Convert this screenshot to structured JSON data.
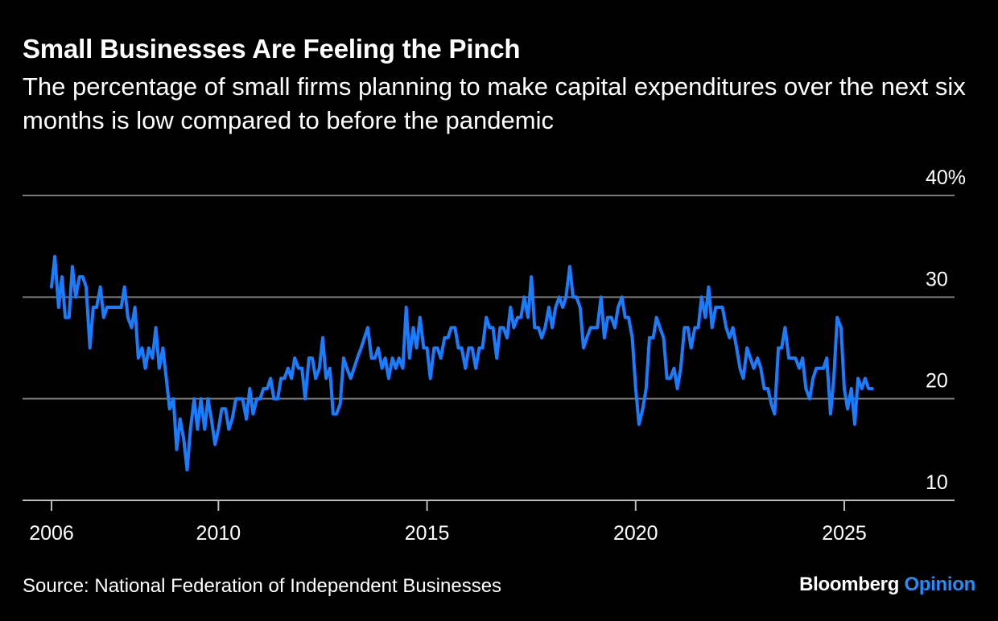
{
  "header": {
    "title": "Small Businesses Are Feeling the Pinch",
    "subtitle": "The percentage of small firms planning to make capital expenditures over the next six months is low compared to before the pandemic"
  },
  "footer": {
    "source": "Source: National Federation of Independent Businesses",
    "logo_primary": "Bloomberg",
    "logo_secondary": "Opinion"
  },
  "colors": {
    "background": "#000000",
    "line": "#1a7cff",
    "gridline": "#7a7a7a",
    "axis": "#bdbdbd",
    "text": "#ffffff",
    "logo_accent": "#1f8fff"
  },
  "chart_data": {
    "type": "line",
    "title": "Small Businesses Are Feeling the Pinch",
    "subtitle": "The percentage of small firms planning to make capital expenditures over the next six months is low compared to before the pandemic",
    "xlabel": "",
    "ylabel": "",
    "ylim": [
      10,
      40
    ],
    "xlim": [
      2005.5,
      2028.0
    ],
    "y_ticks": [
      {
        "value": 10,
        "label": "10"
      },
      {
        "value": 20,
        "label": "20"
      },
      {
        "value": 30,
        "label": "30"
      },
      {
        "value": 40,
        "label": "40%"
      }
    ],
    "x_ticks": [
      {
        "value": 2006,
        "label": "2006"
      },
      {
        "value": 2010,
        "label": "2010"
      },
      {
        "value": 2015,
        "label": "2015"
      },
      {
        "value": 2020,
        "label": "2020"
      },
      {
        "value": 2025,
        "label": "2025"
      }
    ],
    "grid": true,
    "legend": "none",
    "series": [
      {
        "points": [
          [
            2006.0,
            31
          ],
          [
            2006.08,
            34
          ],
          [
            2006.17,
            29
          ],
          [
            2006.25,
            32
          ],
          [
            2006.33,
            28
          ],
          [
            2006.42,
            28
          ],
          [
            2006.5,
            33
          ],
          [
            2006.58,
            30
          ],
          [
            2006.67,
            32
          ],
          [
            2006.75,
            32
          ],
          [
            2006.83,
            31
          ],
          [
            2006.92,
            25
          ],
          [
            2007.0,
            29
          ],
          [
            2007.08,
            29
          ],
          [
            2007.17,
            31
          ],
          [
            2007.25,
            28
          ],
          [
            2007.33,
            29
          ],
          [
            2007.42,
            29
          ],
          [
            2007.5,
            29
          ],
          [
            2007.58,
            29
          ],
          [
            2007.67,
            29
          ],
          [
            2007.75,
            31
          ],
          [
            2007.83,
            28
          ],
          [
            2007.92,
            27
          ],
          [
            2008.0,
            29
          ],
          [
            2008.08,
            24
          ],
          [
            2008.17,
            25
          ],
          [
            2008.25,
            23
          ],
          [
            2008.33,
            25
          ],
          [
            2008.42,
            24
          ],
          [
            2008.5,
            27
          ],
          [
            2008.58,
            23
          ],
          [
            2008.67,
            25
          ],
          [
            2008.75,
            22
          ],
          [
            2008.83,
            19
          ],
          [
            2008.92,
            20
          ],
          [
            2009.0,
            15
          ],
          [
            2009.08,
            18
          ],
          [
            2009.17,
            16
          ],
          [
            2009.25,
            13
          ],
          [
            2009.33,
            17
          ],
          [
            2009.42,
            20
          ],
          [
            2009.5,
            17
          ],
          [
            2009.58,
            20
          ],
          [
            2009.67,
            17
          ],
          [
            2009.75,
            20
          ],
          [
            2009.83,
            18
          ],
          [
            2009.92,
            15.5
          ],
          [
            2010.0,
            17
          ],
          [
            2010.08,
            19
          ],
          [
            2010.17,
            19
          ],
          [
            2010.25,
            17
          ],
          [
            2010.33,
            18
          ],
          [
            2010.42,
            20
          ],
          [
            2010.5,
            20
          ],
          [
            2010.58,
            20
          ],
          [
            2010.67,
            18
          ],
          [
            2010.75,
            21
          ],
          [
            2010.83,
            18.5
          ],
          [
            2010.92,
            20
          ],
          [
            2011.0,
            20
          ],
          [
            2011.08,
            21
          ],
          [
            2011.17,
            21
          ],
          [
            2011.25,
            22
          ],
          [
            2011.33,
            20
          ],
          [
            2011.42,
            20
          ],
          [
            2011.5,
            22
          ],
          [
            2011.58,
            22
          ],
          [
            2011.67,
            23
          ],
          [
            2011.75,
            22
          ],
          [
            2011.83,
            24
          ],
          [
            2011.92,
            23
          ],
          [
            2012.0,
            23
          ],
          [
            2012.08,
            20
          ],
          [
            2012.17,
            24
          ],
          [
            2012.25,
            24
          ],
          [
            2012.33,
            22
          ],
          [
            2012.42,
            23
          ],
          [
            2012.5,
            26
          ],
          [
            2012.58,
            22
          ],
          [
            2012.67,
            23
          ],
          [
            2012.75,
            18.5
          ],
          [
            2012.83,
            18.5
          ],
          [
            2012.92,
            19.5
          ],
          [
            2013.0,
            24
          ],
          [
            2013.08,
            23
          ],
          [
            2013.17,
            22
          ],
          [
            2013.25,
            23
          ],
          [
            2013.33,
            24
          ],
          [
            2013.42,
            25
          ],
          [
            2013.5,
            26
          ],
          [
            2013.58,
            27
          ],
          [
            2013.67,
            24
          ],
          [
            2013.75,
            24
          ],
          [
            2013.83,
            25
          ],
          [
            2013.92,
            23
          ],
          [
            2014.0,
            24
          ],
          [
            2014.08,
            22
          ],
          [
            2014.17,
            24
          ],
          [
            2014.25,
            23
          ],
          [
            2014.33,
            24
          ],
          [
            2014.42,
            23
          ],
          [
            2014.5,
            29
          ],
          [
            2014.58,
            24
          ],
          [
            2014.67,
            27
          ],
          [
            2014.75,
            25
          ],
          [
            2014.83,
            28
          ],
          [
            2014.92,
            25
          ],
          [
            2015.0,
            25
          ],
          [
            2015.08,
            22
          ],
          [
            2015.17,
            25
          ],
          [
            2015.25,
            25
          ],
          [
            2015.33,
            24
          ],
          [
            2015.42,
            26
          ],
          [
            2015.5,
            26
          ],
          [
            2015.58,
            27
          ],
          [
            2015.67,
            27
          ],
          [
            2015.75,
            25
          ],
          [
            2015.83,
            25
          ],
          [
            2015.92,
            23
          ],
          [
            2016.0,
            25
          ],
          [
            2016.08,
            25
          ],
          [
            2016.17,
            23
          ],
          [
            2016.25,
            25
          ],
          [
            2016.33,
            25
          ],
          [
            2016.42,
            28
          ],
          [
            2016.5,
            27
          ],
          [
            2016.58,
            27
          ],
          [
            2016.67,
            24
          ],
          [
            2016.75,
            27
          ],
          [
            2016.83,
            27
          ],
          [
            2016.92,
            26
          ],
          [
            2017.0,
            29
          ],
          [
            2017.08,
            27
          ],
          [
            2017.17,
            28
          ],
          [
            2017.25,
            28
          ],
          [
            2017.33,
            30
          ],
          [
            2017.42,
            28
          ],
          [
            2017.5,
            32
          ],
          [
            2017.58,
            27
          ],
          [
            2017.67,
            27
          ],
          [
            2017.75,
            26
          ],
          [
            2017.83,
            27
          ],
          [
            2017.92,
            29
          ],
          [
            2018.0,
            27
          ],
          [
            2018.08,
            29
          ],
          [
            2018.17,
            30
          ],
          [
            2018.25,
            29
          ],
          [
            2018.33,
            30
          ],
          [
            2018.42,
            33
          ],
          [
            2018.5,
            30
          ],
          [
            2018.58,
            30
          ],
          [
            2018.67,
            29
          ],
          [
            2018.75,
            25
          ],
          [
            2018.83,
            26
          ],
          [
            2018.92,
            27
          ],
          [
            2019.0,
            27
          ],
          [
            2019.08,
            27
          ],
          [
            2019.17,
            30
          ],
          [
            2019.25,
            26
          ],
          [
            2019.33,
            28
          ],
          [
            2019.42,
            28
          ],
          [
            2019.5,
            27
          ],
          [
            2019.58,
            29
          ],
          [
            2019.67,
            30
          ],
          [
            2019.75,
            28
          ],
          [
            2019.83,
            28
          ],
          [
            2019.92,
            26
          ],
          [
            2020.0,
            21
          ],
          [
            2020.08,
            17.5
          ],
          [
            2020.17,
            19
          ],
          [
            2020.25,
            21
          ],
          [
            2020.33,
            26
          ],
          [
            2020.42,
            26
          ],
          [
            2020.5,
            28
          ],
          [
            2020.58,
            27
          ],
          [
            2020.67,
            26
          ],
          [
            2020.75,
            22
          ],
          [
            2020.83,
            22
          ],
          [
            2020.92,
            23
          ],
          [
            2021.0,
            21
          ],
          [
            2021.08,
            23
          ],
          [
            2021.17,
            27
          ],
          [
            2021.25,
            27
          ],
          [
            2021.33,
            25
          ],
          [
            2021.42,
            27
          ],
          [
            2021.5,
            27
          ],
          [
            2021.58,
            30
          ],
          [
            2021.67,
            28
          ],
          [
            2021.75,
            31
          ],
          [
            2021.83,
            27
          ],
          [
            2021.92,
            29
          ],
          [
            2022.0,
            29
          ],
          [
            2022.08,
            29
          ],
          [
            2022.17,
            27
          ],
          [
            2022.25,
            26
          ],
          [
            2022.33,
            27
          ],
          [
            2022.42,
            25
          ],
          [
            2022.5,
            23
          ],
          [
            2022.58,
            22
          ],
          [
            2022.67,
            25
          ],
          [
            2022.75,
            24
          ],
          [
            2022.83,
            23
          ],
          [
            2022.92,
            24
          ],
          [
            2023.0,
            23
          ],
          [
            2023.08,
            21
          ],
          [
            2023.17,
            21
          ],
          [
            2023.25,
            19.5
          ],
          [
            2023.33,
            18.5
          ],
          [
            2023.42,
            25
          ],
          [
            2023.5,
            25
          ],
          [
            2023.58,
            27
          ],
          [
            2023.67,
            24
          ],
          [
            2023.75,
            24
          ],
          [
            2023.83,
            24
          ],
          [
            2023.92,
            23
          ],
          [
            2024.0,
            24
          ],
          [
            2024.08,
            21
          ],
          [
            2024.17,
            20
          ],
          [
            2024.25,
            22
          ],
          [
            2024.33,
            23
          ],
          [
            2024.42,
            23
          ],
          [
            2024.5,
            23
          ],
          [
            2024.58,
            24
          ],
          [
            2024.67,
            18.5
          ],
          [
            2024.75,
            22
          ],
          [
            2024.83,
            28
          ],
          [
            2024.92,
            27
          ],
          [
            2025.0,
            21
          ],
          [
            2025.08,
            19
          ],
          [
            2025.17,
            21
          ],
          [
            2025.25,
            17.5
          ],
          [
            2025.33,
            22
          ],
          [
            2025.42,
            21
          ],
          [
            2025.5,
            22
          ],
          [
            2025.58,
            21
          ],
          [
            2025.67,
            21
          ]
        ]
      }
    ]
  }
}
